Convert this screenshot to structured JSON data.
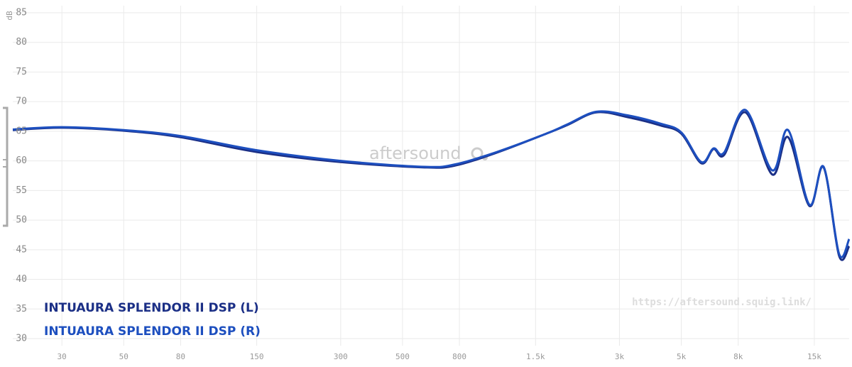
{
  "chart_data": {
    "type": "line",
    "y_label": "dB",
    "watermark": "aftersound",
    "url": "https://aftersound.squig.link/",
    "x_scale": "log",
    "grid": true,
    "xlim": [
      20,
      20000
    ],
    "ylim": [
      30,
      85
    ],
    "yticks": [
      30,
      35,
      40,
      45,
      50,
      55,
      60,
      65,
      70,
      75,
      80,
      85
    ],
    "xticks": [
      30,
      50,
      80,
      150,
      300,
      500,
      800,
      {
        "value": 1500,
        "label": "1.5k"
      },
      {
        "value": 3000,
        "label": "3k"
      },
      {
        "value": 5000,
        "label": "5k"
      },
      {
        "value": 8000,
        "label": "8k"
      },
      {
        "value": 15000,
        "label": "15k"
      }
    ],
    "x": [
      20,
      30,
      50,
      80,
      150,
      300,
      600,
      770,
      1090,
      1640,
      1960,
      2480,
      3200,
      4200,
      5000,
      5900,
      6520,
      7120,
      8490,
      10600,
      12080,
      14400,
      16200,
      18400,
      20000
    ],
    "series": [
      {
        "name": "INTUAURA SPLENDOR II DSP (L)",
        "color": "#1b2f86",
        "values": [
          65.2,
          65.6,
          65.1,
          64.0,
          61.5,
          59.8,
          58.9,
          59.2,
          61.4,
          64.6,
          66.1,
          68.2,
          67.4,
          66.0,
          64.6,
          59.6,
          62.0,
          61.0,
          68.2,
          57.7,
          64.0,
          52.4,
          58.9,
          44.0,
          45.6
        ]
      },
      {
        "name": "INTUAURA SPLENDOR II DSP (R)",
        "color": "#1d4fbf",
        "values": [
          65.3,
          65.7,
          65.2,
          64.2,
          61.8,
          60.0,
          59.0,
          59.4,
          61.5,
          64.6,
          66.2,
          68.3,
          67.7,
          66.3,
          64.8,
          59.8,
          62.1,
          61.4,
          68.6,
          58.4,
          65.2,
          52.6,
          59.0,
          44.3,
          46.8
        ]
      }
    ]
  }
}
